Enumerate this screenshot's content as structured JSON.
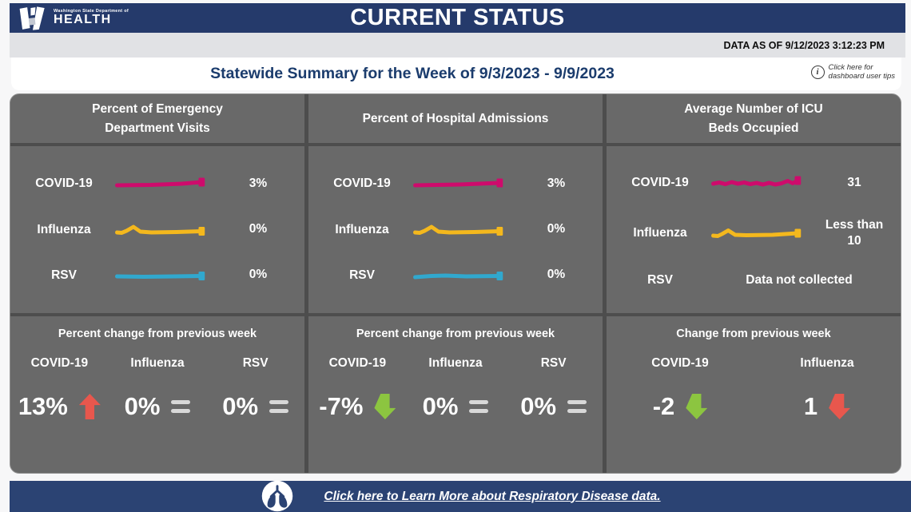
{
  "header": {
    "logo_department": "Washington State Department of",
    "logo_name": "HEALTH",
    "title": "CURRENT STATUS"
  },
  "status_bar": {
    "data_as_of": "DATA AS OF 9/12/2023 3:12:23 PM"
  },
  "summary": {
    "subtitle": "Statewide Summary for the Week of 9/3/2023 - 9/9/2023",
    "tips_line1": "Click here for",
    "tips_line2": "dashboard user tips",
    "info_glyph": "i"
  },
  "colors": {
    "header_blue": "#253A6B",
    "footer_blue": "#2B4373",
    "panel_gray": "#696969",
    "divider_gray": "#4D4D4D",
    "covid_pink": "#CE0B6C",
    "influenza_yellow": "#F4B81D",
    "rsv_blue": "#31A8CE",
    "increase_red": "#E8574D",
    "decrease_green": "#8CC540",
    "equals_gray": "#D8D8D8"
  },
  "panels": [
    {
      "title": [
        "Percent of Emergency",
        "Department Visits"
      ],
      "rows": [
        {
          "label": "COVID-19",
          "value": "3%",
          "color": "#CE0B6C",
          "spark": [
            [
              6,
              16
            ],
            [
              55,
              15.5
            ],
            [
              100,
              14
            ],
            [
              128,
              12
            ]
          ]
        },
        {
          "label": "Influenza",
          "value": "0%",
          "color": "#F4B81D",
          "spark": [
            [
              6,
              17
            ],
            [
              13,
              17.5
            ],
            [
              20,
              15
            ],
            [
              30,
              10
            ],
            [
              40,
              16
            ],
            [
              56,
              17
            ],
            [
              92,
              16.5
            ],
            [
              128,
              15.5
            ]
          ]
        },
        {
          "label": "RSV",
          "value": "0%",
          "color": "#31A8CE",
          "spark": [
            [
              6,
              15
            ],
            [
              45,
              15.5
            ],
            [
              90,
              15
            ],
            [
              128,
              14.5
            ]
          ]
        }
      ],
      "change": {
        "title": "Percent change from previous week",
        "items": [
          {
            "label": "COVID-19",
            "value": "13%",
            "indicator": "up",
            "color": "#E8574D"
          },
          {
            "label": "Influenza",
            "value": "0%",
            "indicator": "equal",
            "color": "#D8D8D8"
          },
          {
            "label": "RSV",
            "value": "0%",
            "indicator": "equal",
            "color": "#D8D8D8"
          }
        ]
      }
    },
    {
      "title": [
        "Percent of Hospital Admissions"
      ],
      "rows": [
        {
          "label": "COVID-19",
          "value": "3%",
          "color": "#CE0B6C",
          "spark": [
            [
              6,
              16
            ],
            [
              70,
              15
            ],
            [
              128,
              13
            ]
          ]
        },
        {
          "label": "Influenza",
          "value": "0%",
          "color": "#F4B81D",
          "spark": [
            [
              6,
              17
            ],
            [
              13,
              17.5
            ],
            [
              20,
              15
            ],
            [
              30,
              10
            ],
            [
              40,
              16
            ],
            [
              56,
              17
            ],
            [
              92,
              16.5
            ],
            [
              128,
              15.5
            ]
          ]
        },
        {
          "label": "RSV",
          "value": "0%",
          "color": "#31A8CE",
          "spark": [
            [
              6,
              16
            ],
            [
              30,
              14.5
            ],
            [
              50,
              14
            ],
            [
              80,
              15
            ],
            [
              128,
              14.5
            ]
          ]
        }
      ],
      "change": {
        "title": "Percent change from previous week",
        "items": [
          {
            "label": "COVID-19",
            "value": "-7%",
            "indicator": "down",
            "color": "#8CC540"
          },
          {
            "label": "Influenza",
            "value": "0%",
            "indicator": "equal",
            "color": "#D8D8D8"
          },
          {
            "label": "RSV",
            "value": "0%",
            "indicator": "equal",
            "color": "#D8D8D8"
          }
        ]
      }
    },
    {
      "title": [
        "Average Number of ICU",
        "Beds Occupied"
      ],
      "rows": [
        {
          "label": "COVID-19",
          "value": "31",
          "color": "#CE0B6C",
          "spark": [
            [
              6,
              15
            ],
            [
              15,
              13.5
            ],
            [
              24,
              15.5
            ],
            [
              33,
              13
            ],
            [
              42,
              15
            ],
            [
              51,
              13.5
            ],
            [
              60,
              15.5
            ],
            [
              69,
              14
            ],
            [
              78,
              16
            ],
            [
              87,
              14
            ],
            [
              96,
              16
            ],
            [
              105,
              14.5
            ],
            [
              114,
              11.5
            ],
            [
              121,
              14.5
            ],
            [
              128,
              11
            ]
          ]
        },
        {
          "label": "Influenza",
          "value": "Less than 10",
          "color": "#F4B81D",
          "spark": [
            [
              6,
              17
            ],
            [
              13,
              17.5
            ],
            [
              19,
              15
            ],
            [
              28,
              10.5
            ],
            [
              38,
              16
            ],
            [
              54,
              16.5
            ],
            [
              92,
              16
            ],
            [
              128,
              14
            ]
          ]
        },
        {
          "label": "RSV",
          "note": "Data not collected"
        }
      ],
      "change": {
        "title": "Change from previous week",
        "items": [
          {
            "label": "COVID-19",
            "value": "-2",
            "indicator": "down",
            "color": "#8CC540"
          },
          {
            "label": "Influenza",
            "value": "1",
            "indicator": "down",
            "color": "#E8574D"
          }
        ]
      }
    }
  ],
  "footer": {
    "link_text": "Click here to Learn More about Respiratory Disease data."
  }
}
